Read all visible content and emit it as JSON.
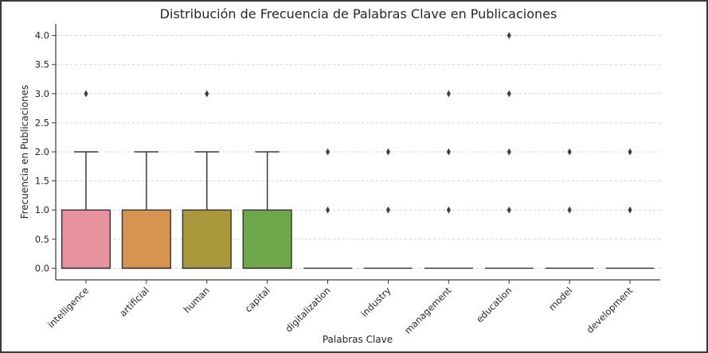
{
  "chart_data": {
    "type": "box",
    "title": "Distribución de Frecuencia de Palabras Clave en Publicaciones",
    "xlabel": "Palabras Clave",
    "ylabel": "Frecuencia en Publicaciones",
    "ylim": [
      -0.2,
      4.2
    ],
    "yticks": [
      "0.0",
      "0.5",
      "1.0",
      "1.5",
      "2.0",
      "2.5",
      "3.0",
      "3.5",
      "4.0"
    ],
    "grid": "horizontal dashed",
    "categories": [
      "intelligence",
      "artificial",
      "human",
      "capital",
      "digitalization",
      "industry",
      "management",
      "education",
      "model",
      "development"
    ],
    "series": [
      {
        "q1": 0,
        "median": 0,
        "q3": 1,
        "whisker_low": 0,
        "whisker_high": 2,
        "outliers": [
          3
        ],
        "color": "#e8919f"
      },
      {
        "q1": 0,
        "median": 0,
        "q3": 1,
        "whisker_low": 0,
        "whisker_high": 2,
        "outliers": [],
        "color": "#d99350"
      },
      {
        "q1": 0,
        "median": 0,
        "q3": 1,
        "whisker_low": 0,
        "whisker_high": 2,
        "outliers": [
          3
        ],
        "color": "#a9983c"
      },
      {
        "q1": 0,
        "median": 0,
        "q3": 1,
        "whisker_low": 0,
        "whisker_high": 2,
        "outliers": [],
        "color": "#6ea84a"
      },
      {
        "q1": 0,
        "median": 0,
        "q3": 0,
        "whisker_low": 0,
        "whisker_high": 0,
        "outliers": [
          1,
          2
        ],
        "color": "#4fa87f"
      },
      {
        "q1": 0,
        "median": 0,
        "q3": 0,
        "whisker_low": 0,
        "whisker_high": 0,
        "outliers": [
          1,
          2
        ],
        "color": "#4fa6a0"
      },
      {
        "q1": 0,
        "median": 0,
        "q3": 0,
        "whisker_low": 0,
        "whisker_high": 0,
        "outliers": [
          1,
          2,
          3
        ],
        "color": "#4fa3c0"
      },
      {
        "q1": 0,
        "median": 0,
        "q3": 0,
        "whisker_low": 0,
        "whisker_high": 0,
        "outliers": [
          1,
          2,
          3,
          4
        ],
        "color": "#7fa0d6"
      },
      {
        "q1": 0,
        "median": 0,
        "q3": 0,
        "whisker_low": 0,
        "whisker_high": 0,
        "outliers": [
          1,
          2
        ],
        "color": "#b494dc"
      },
      {
        "q1": 0,
        "median": 0,
        "q3": 0,
        "whisker_low": 0,
        "whisker_high": 0,
        "outliers": [
          1,
          2
        ],
        "color": "#e08dc2"
      }
    ]
  }
}
